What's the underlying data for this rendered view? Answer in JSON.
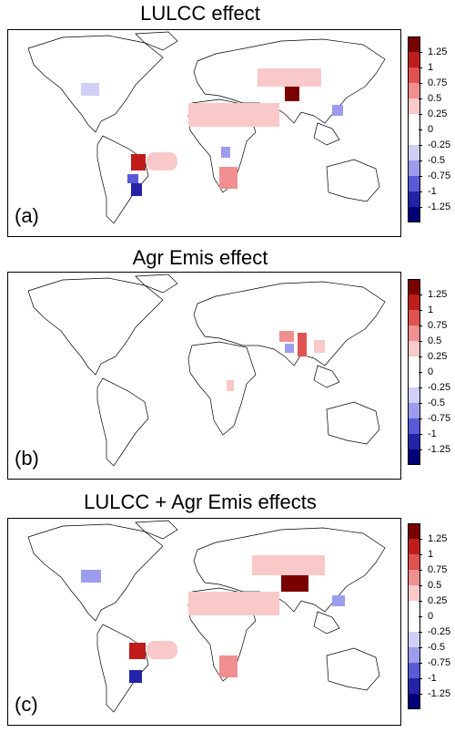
{
  "panels": [
    {
      "id": "a",
      "title": "LULCC effect",
      "letter": "(a)",
      "cells": [
        {
          "region": "south-brazil",
          "value": -1.2
        },
        {
          "region": "paraguay",
          "value": -0.9
        },
        {
          "region": "central-brazil",
          "value": 1.0
        },
        {
          "region": "atlantic-plume",
          "value": 0.3
        },
        {
          "region": "north-india",
          "value": 1.1
        },
        {
          "region": "china",
          "value": 0.4
        },
        {
          "region": "east-us",
          "value": -0.4
        },
        {
          "region": "sahel",
          "value": 0.4
        },
        {
          "region": "southern-africa",
          "value": 0.5
        },
        {
          "region": "east-africa",
          "value": -0.6
        },
        {
          "region": "se-asia",
          "value": -0.5
        }
      ]
    },
    {
      "id": "b",
      "title": "Agr Emis effect",
      "letter": "(b)",
      "cells": [
        {
          "region": "north-india",
          "value": 0.6
        },
        {
          "region": "bangladesh",
          "value": 0.9
        },
        {
          "region": "south-india",
          "value": -0.5
        },
        {
          "region": "indochina",
          "value": 0.3
        },
        {
          "region": "east-africa",
          "value": 0.3
        }
      ]
    },
    {
      "id": "c",
      "title": "LULCC + Agr Emis effects",
      "letter": "(c)",
      "cells": [
        {
          "region": "south-brazil",
          "value": -1.1
        },
        {
          "region": "central-brazil",
          "value": 1.0
        },
        {
          "region": "atlantic-plume",
          "value": 0.3
        },
        {
          "region": "north-india",
          "value": 1.2
        },
        {
          "region": "china",
          "value": 0.5
        },
        {
          "region": "east-us",
          "value": -0.5
        },
        {
          "region": "sahel",
          "value": 0.4
        },
        {
          "region": "southern-africa",
          "value": 0.5
        },
        {
          "region": "se-asia",
          "value": -0.6
        }
      ]
    }
  ],
  "colorbar": {
    "labels": [
      "1.25",
      "1",
      "0.75",
      "0.5",
      "0.25",
      "0",
      "-0.25",
      "-0.5",
      "-0.75",
      "-1",
      "-1.25"
    ],
    "colors": [
      "#7a0000",
      "#c01c1c",
      "#e05252",
      "#f08f8f",
      "#f9c8c8",
      "#ffffff",
      "#ffffff",
      "#cfcff7",
      "#9c9cee",
      "#5a5ad8",
      "#2323a8",
      "#000078"
    ]
  }
}
